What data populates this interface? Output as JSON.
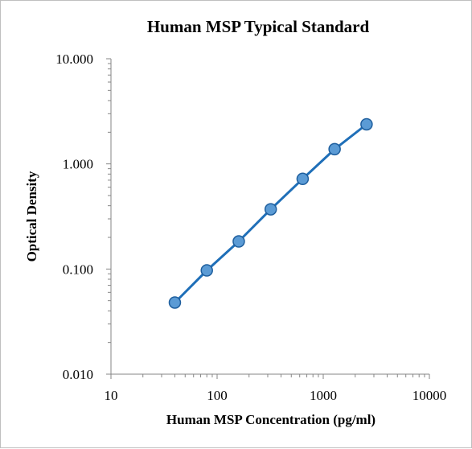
{
  "chart_data": {
    "type": "scatter",
    "title": "Human MSP Typical Standard",
    "xlabel": "Human MSP Concentration (pg/ml)",
    "ylabel": "Optical Density",
    "xscale": "log",
    "yscale": "log",
    "xlim": [
      10,
      10000
    ],
    "ylim": [
      0.01,
      10
    ],
    "xticks": [
      "10",
      "100",
      "1000",
      "10000"
    ],
    "yticks": [
      "10.000",
      "1.000",
      "0.100",
      "0.010"
    ],
    "grid": false,
    "legend": "none",
    "series": [
      {
        "x": [
          40,
          80,
          160,
          320,
          640,
          1280,
          2560
        ],
        "y": [
          0.048,
          0.097,
          0.183,
          0.37,
          0.72,
          1.38,
          2.38
        ]
      }
    ],
    "colors": {
      "line": "#1f6fb8",
      "marker_fill": "#5b9bd5",
      "marker_edge": "#1f5f9e",
      "axis": "#868686"
    }
  }
}
